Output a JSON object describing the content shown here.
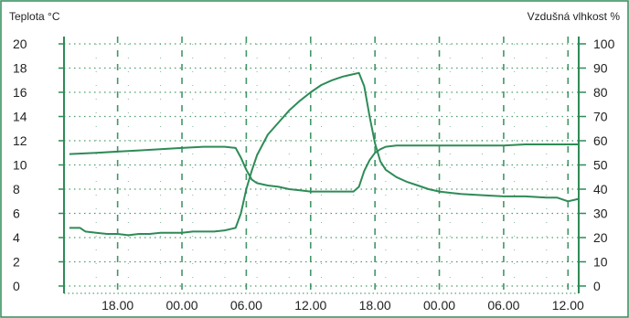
{
  "chart_data": {
    "type": "line",
    "left_axis_label": "Teplota °C",
    "right_axis_label": "Vzdušná vlhkost %",
    "left_yticks": [
      20,
      18,
      16,
      14,
      12,
      10,
      8,
      6,
      4,
      2,
      0
    ],
    "right_yticks": [
      100,
      90,
      80,
      70,
      60,
      50,
      40,
      30,
      20,
      10,
      0
    ],
    "left_ylim": [
      0,
      20
    ],
    "right_ylim": [
      0,
      100
    ],
    "xlim": [
      13,
      61
    ],
    "x_ticks": [
      18,
      24,
      30,
      36,
      42,
      48,
      54,
      60
    ],
    "x_tick_labels": [
      "18.00",
      "00.00",
      "06.00",
      "12.00",
      "18.00",
      "00.00",
      "06.00",
      "12.00"
    ],
    "grid": true,
    "colors": {
      "line": "#2e8b57",
      "frame": "#2e8b57",
      "grid": "#2e8b57",
      "text": "#222222"
    },
    "series": [
      {
        "axis": "left",
        "points": [
          [
            13.5,
            10.9
          ],
          [
            16,
            11.0
          ],
          [
            18,
            11.1
          ],
          [
            20,
            11.2
          ],
          [
            22,
            11.3
          ],
          [
            24,
            11.4
          ],
          [
            26,
            11.5
          ],
          [
            28,
            11.5
          ],
          [
            29,
            11.4
          ],
          [
            29.5,
            10.6
          ],
          [
            30,
            9.6
          ],
          [
            30.5,
            8.8
          ],
          [
            31,
            8.5
          ],
          [
            32,
            8.3
          ],
          [
            33,
            8.2
          ],
          [
            34,
            8.0
          ],
          [
            35,
            7.9
          ],
          [
            36,
            7.8
          ],
          [
            37,
            7.8
          ],
          [
            38,
            7.8
          ],
          [
            39,
            7.8
          ],
          [
            40,
            7.8
          ],
          [
            40.5,
            8.2
          ],
          [
            41,
            9.5
          ],
          [
            41.5,
            10.4
          ],
          [
            42,
            11.0
          ],
          [
            42.5,
            11.3
          ],
          [
            43,
            11.5
          ],
          [
            44,
            11.6
          ],
          [
            46,
            11.6
          ],
          [
            48,
            11.6
          ],
          [
            50,
            11.6
          ],
          [
            52,
            11.6
          ],
          [
            54,
            11.6
          ],
          [
            56,
            11.7
          ],
          [
            58,
            11.7
          ],
          [
            60,
            11.7
          ],
          [
            61,
            11.7
          ]
        ]
      },
      {
        "axis": "left",
        "points": [
          [
            13.5,
            4.8
          ],
          [
            14.5,
            4.8
          ],
          [
            15,
            4.5
          ],
          [
            16,
            4.4
          ],
          [
            17,
            4.3
          ],
          [
            18,
            4.3
          ],
          [
            19,
            4.2
          ],
          [
            20,
            4.3
          ],
          [
            21,
            4.3
          ],
          [
            22,
            4.4
          ],
          [
            23,
            4.4
          ],
          [
            24,
            4.4
          ],
          [
            25,
            4.5
          ],
          [
            26,
            4.5
          ],
          [
            27,
            4.5
          ],
          [
            28,
            4.6
          ],
          [
            29,
            4.8
          ],
          [
            29.5,
            6.0
          ],
          [
            30,
            8.0
          ],
          [
            30.5,
            9.5
          ],
          [
            31,
            10.8
          ],
          [
            32,
            12.5
          ],
          [
            33,
            13.5
          ],
          [
            34,
            14.5
          ],
          [
            35,
            15.3
          ],
          [
            36,
            16.0
          ],
          [
            37,
            16.6
          ],
          [
            38,
            17.0
          ],
          [
            39,
            17.3
          ],
          [
            40,
            17.5
          ],
          [
            40.5,
            17.6
          ],
          [
            41,
            16.5
          ],
          [
            41.5,
            14.0
          ],
          [
            42,
            11.8
          ],
          [
            42.5,
            10.3
          ],
          [
            43,
            9.6
          ],
          [
            44,
            9.0
          ],
          [
            45,
            8.6
          ],
          [
            46,
            8.3
          ],
          [
            47,
            8.0
          ],
          [
            48,
            7.8
          ],
          [
            49,
            7.7
          ],
          [
            50,
            7.6
          ],
          [
            52,
            7.5
          ],
          [
            54,
            7.4
          ],
          [
            56,
            7.4
          ],
          [
            58,
            7.3
          ],
          [
            59,
            7.3
          ],
          [
            60,
            7.0
          ],
          [
            61,
            7.2
          ]
        ]
      }
    ]
  }
}
